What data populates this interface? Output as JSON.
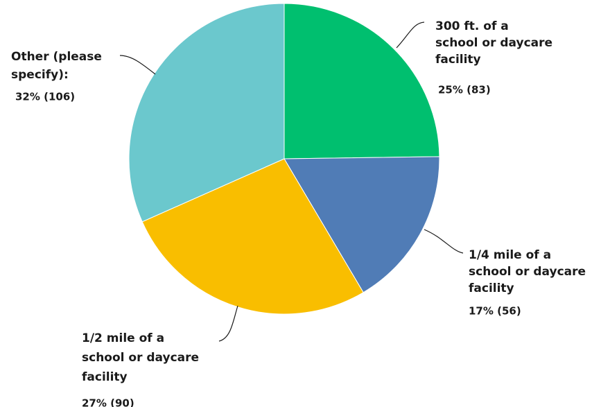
{
  "chart_data": {
    "type": "pie",
    "title": "",
    "slices": [
      {
        "label_lines": [
          "300 ft. of a",
          "school or daycare",
          "facility"
        ],
        "percent": 25,
        "count": 83,
        "value_label": "25% (83)",
        "color": "#00BF6F"
      },
      {
        "label_lines": [
          "1/4 mile of a",
          "school or daycare",
          "facility"
        ],
        "percent": 17,
        "count": 56,
        "value_label": "17% (56)",
        "color": "#507CB6"
      },
      {
        "label_lines": [
          "1/2 mile of a",
          "school or daycare",
          "facility"
        ],
        "percent": 27,
        "count": 90,
        "value_label": "27% (90)",
        "color": "#F9BE00"
      },
      {
        "label_lines": [
          "Other (please",
          "specify):"
        ],
        "percent": 32,
        "count": 106,
        "value_label": "32% (106)",
        "color": "#6BC8CD"
      }
    ]
  }
}
